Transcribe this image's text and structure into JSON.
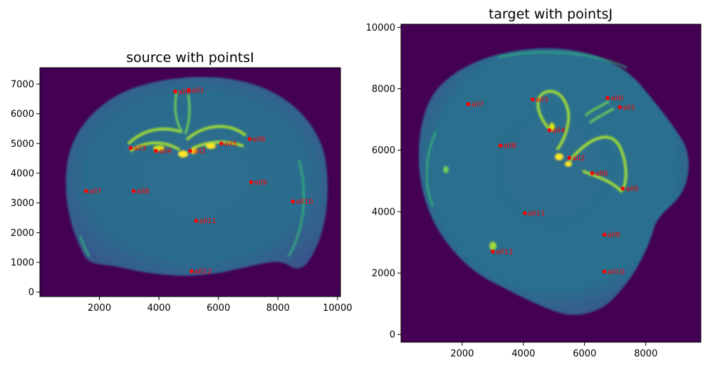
{
  "colors": {
    "background": "#440154",
    "tissue": "#2f6a8e",
    "tissue_light": "#24878e",
    "bright": "#a0da39",
    "brightest": "#fde725",
    "point": "#ff0000"
  },
  "chart_data": [
    {
      "type": "scatter",
      "title": "source with pointsI",
      "background": "image",
      "xlim": [
        0,
        10100
      ],
      "ylim": [
        -150,
        7550
      ],
      "xticks": [
        "2000",
        "4000",
        "6000",
        "8000",
        "10000"
      ],
      "yticks": [
        "0",
        "1000",
        "2000",
        "3000",
        "4000",
        "5000",
        "6000",
        "7000"
      ],
      "points": [
        {
          "label": "all0",
          "x": 4550,
          "y": 6750
        },
        {
          "label": "all1",
          "x": 5000,
          "y": 6800
        },
        {
          "label": "all2",
          "x": 5050,
          "y": 4750
        },
        {
          "label": "all3",
          "x": 3050,
          "y": 4850
        },
        {
          "label": "all4",
          "x": 3900,
          "y": 4750
        },
        {
          "label": "all5",
          "x": 6100,
          "y": 5000
        },
        {
          "label": "all6",
          "x": 7050,
          "y": 5150
        },
        {
          "label": "all7",
          "x": 1550,
          "y": 3400
        },
        {
          "label": "all8",
          "x": 3150,
          "y": 3400
        },
        {
          "label": "all9",
          "x": 7100,
          "y": 3700
        },
        {
          "label": "all10",
          "x": 8500,
          "y": 3050
        },
        {
          "label": "all11",
          "x": 5250,
          "y": 2400
        },
        {
          "label": "all12",
          "x": 5100,
          "y": 700
        }
      ]
    },
    {
      "type": "scatter",
      "title": "target with pointsJ",
      "background": "image",
      "xlim": [
        0,
        9800
      ],
      "ylim": [
        -250,
        10100
      ],
      "xticks": [
        "2000",
        "4000",
        "6000",
        "8000"
      ],
      "yticks": [
        "0",
        "2000",
        "4000",
        "6000",
        "8000",
        "10000"
      ],
      "points": [
        {
          "label": "all0",
          "x": 6750,
          "y": 7700
        },
        {
          "label": "all1",
          "x": 7150,
          "y": 7400
        },
        {
          "label": "all2",
          "x": 5500,
          "y": 5750
        },
        {
          "label": "all3",
          "x": 4300,
          "y": 7650
        },
        {
          "label": "all4",
          "x": 4850,
          "y": 6650
        },
        {
          "label": "all5",
          "x": 7250,
          "y": 4750
        },
        {
          "label": "all6",
          "x": 6250,
          "y": 5250
        },
        {
          "label": "all7",
          "x": 2200,
          "y": 7500
        },
        {
          "label": "all8",
          "x": 3250,
          "y": 6150
        },
        {
          "label": "all9",
          "x": 6650,
          "y": 3250
        },
        {
          "label": "all10",
          "x": 6650,
          "y": 2050
        },
        {
          "label": "all11",
          "x": 4050,
          "y": 3950
        },
        {
          "label": "all12",
          "x": 3000,
          "y": 2700
        }
      ]
    }
  ]
}
